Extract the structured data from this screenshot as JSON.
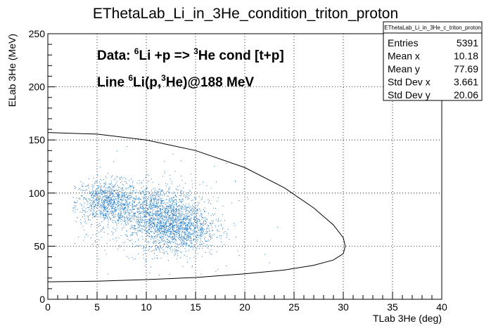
{
  "chart_data": {
    "type": "scatter",
    "title": "EThetaLab_Li_in_3He_condition_triton_proton",
    "xlabel": "TLab 3He (deg)",
    "ylabel": "ELab 3He (MeV)",
    "xlim": [
      0,
      40
    ],
    "ylim": [
      0,
      250
    ],
    "xticks": [
      "0",
      "5",
      "10",
      "15",
      "20",
      "25",
      "30",
      "35",
      "40"
    ],
    "yticks": [
      "0",
      "50",
      "100",
      "150",
      "200",
      "250"
    ],
    "grid": true,
    "marker_color": "#1f77c4",
    "line_color": "#000000",
    "annotations": {
      "line1": {
        "prefix": "Data:  ",
        "sup1": "6",
        "text1": "Li +p =>  ",
        "sup2": "3",
        "text2": "He cond [t+p]"
      },
      "line2": {
        "prefix": "Line  ",
        "sup1": "6",
        "text1": "Li(p,",
        "sup2": "3",
        "text2": "He)@188 MeV"
      }
    },
    "kinematic_curve": {
      "description_points_upper": [
        [
          0.0,
          157.0
        ],
        [
          5.0,
          155.5
        ],
        [
          10.0,
          150.0
        ],
        [
          15.0,
          140.0
        ],
        [
          20.0,
          124.0
        ],
        [
          24.0,
          105.0
        ],
        [
          27.0,
          86.0
        ],
        [
          29.0,
          70.0
        ],
        [
          30.0,
          58.0
        ],
        [
          30.2,
          50.0
        ]
      ],
      "description_points_lower": [
        [
          30.2,
          50.0
        ],
        [
          30.0,
          43.0
        ],
        [
          29.0,
          37.0
        ],
        [
          27.0,
          32.0
        ],
        [
          24.0,
          27.5
        ],
        [
          20.0,
          24.0
        ],
        [
          15.0,
          20.5
        ],
        [
          10.0,
          18.5
        ],
        [
          5.0,
          17.0
        ],
        [
          0.0,
          16.5
        ]
      ]
    },
    "scatter_regions": [
      {
        "x_center": 6.0,
        "y_center": 92,
        "x_sd": 1.6,
        "y_sd": 10,
        "n": 900
      },
      {
        "x_center": 11.0,
        "y_center": 80,
        "x_sd": 2.2,
        "y_sd": 14,
        "n": 1500
      },
      {
        "x_center": 13.5,
        "y_center": 65,
        "x_sd": 1.8,
        "y_sd": 11,
        "n": 900
      },
      {
        "x_center": 10.5,
        "y_center": 75,
        "x_sd": 5.0,
        "y_sd": 28,
        "n": 260
      }
    ]
  },
  "stats_box": {
    "title": "EThetaLab_Li_in_3He_c_triton_proton",
    "rows": [
      {
        "label": "Entries",
        "value": "5391"
      },
      {
        "label": "Mean x",
        "value": "10.18"
      },
      {
        "label": "Mean y",
        "value": "77.69"
      },
      {
        "label": "Std Dev x",
        "value": "3.661"
      },
      {
        "label": "Std Dev y",
        "value": "20.06"
      }
    ]
  }
}
